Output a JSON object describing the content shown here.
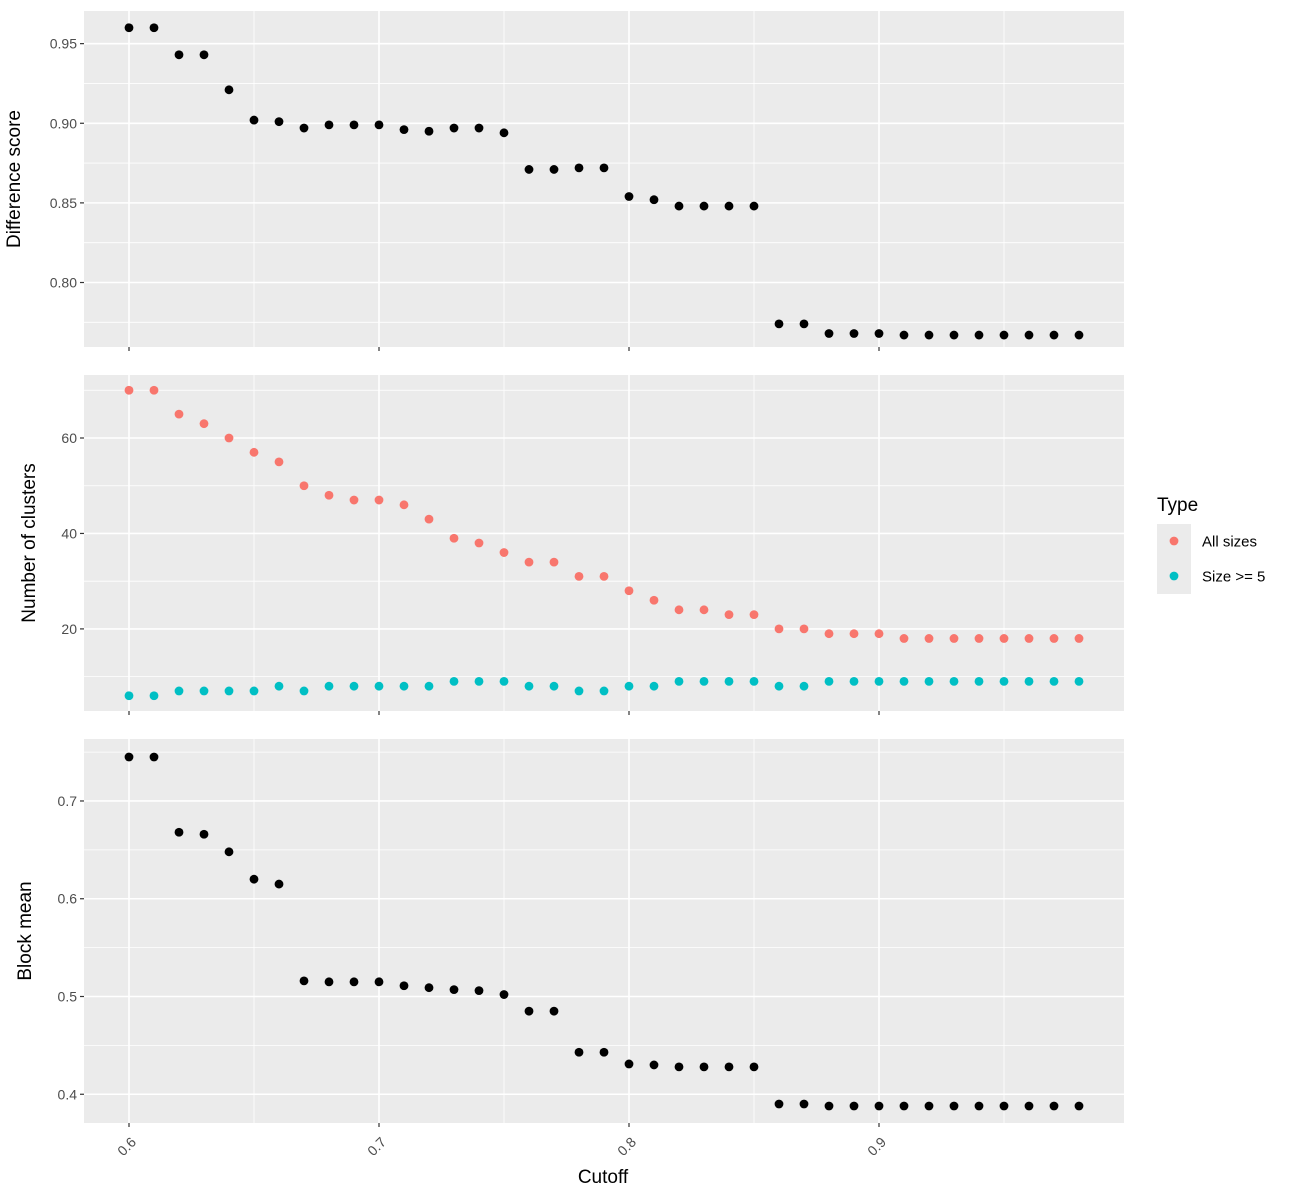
{
  "chart_data": {
    "type": "scatter",
    "xlabel": "Cutoff",
    "xlim": [
      0.582,
      0.998
    ],
    "xticks": [
      0.6,
      0.7,
      0.8,
      0.9
    ],
    "xtick_labels": [
      "0.6",
      "0.7",
      "0.8",
      "0.9"
    ],
    "x": [
      0.6,
      0.61,
      0.62,
      0.63,
      0.64,
      0.65,
      0.66,
      0.67,
      0.68,
      0.69,
      0.7,
      0.71,
      0.72,
      0.73,
      0.74,
      0.75,
      0.76,
      0.77,
      0.78,
      0.79,
      0.8,
      0.81,
      0.82,
      0.83,
      0.84,
      0.85,
      0.86,
      0.87,
      0.88,
      0.89,
      0.9,
      0.91,
      0.92,
      0.93,
      0.94,
      0.95,
      0.96,
      0.97,
      0.98
    ],
    "panels": [
      {
        "ylabel": "Difference score",
        "ylim": [
          0.7595,
          0.9705
        ],
        "yticks": [
          0.8,
          0.85,
          0.9,
          0.95
        ],
        "ytick_labels": [
          "0.80",
          "0.85",
          "0.90",
          "0.95"
        ],
        "series": [
          {
            "color": "#000000",
            "values": [
              0.96,
              0.96,
              0.943,
              0.943,
              0.921,
              0.902,
              0.901,
              0.897,
              0.899,
              0.899,
              0.899,
              0.896,
              0.895,
              0.897,
              0.897,
              0.894,
              0.871,
              0.871,
              0.872,
              0.872,
              0.854,
              0.852,
              0.848,
              0.848,
              0.848,
              0.848,
              0.774,
              0.774,
              0.768,
              0.768,
              0.768,
              0.767,
              0.767,
              0.767,
              0.767,
              0.767,
              0.767,
              0.767,
              0.767
            ]
          }
        ]
      },
      {
        "ylabel": "Number of clusters",
        "ylim": [
          2.8,
          73.2
        ],
        "yticks": [
          20,
          40,
          60
        ],
        "ytick_labels": [
          "20",
          "40",
          "60"
        ],
        "series": [
          {
            "name": "All sizes",
            "color": "#F8766D",
            "values": [
              70,
              70,
              65,
              63,
              60,
              57,
              55,
              50,
              48,
              47,
              47,
              46,
              43,
              39,
              38,
              36,
              34,
              34,
              31,
              31,
              28,
              26,
              24,
              24,
              23,
              23,
              20,
              20,
              19,
              19,
              19,
              18,
              18,
              18,
              18,
              18,
              18,
              18,
              18
            ]
          },
          {
            "name": "Size >= 5",
            "color": "#00BFC4",
            "values": [
              6,
              6,
              7,
              7,
              7,
              7,
              8,
              7,
              8,
              8,
              8,
              8,
              8,
              9,
              9,
              9,
              8,
              8,
              7,
              7,
              8,
              8,
              9,
              9,
              9,
              9,
              8,
              8,
              9,
              9,
              9,
              9,
              9,
              9,
              9,
              9,
              9,
              9,
              9
            ]
          }
        ]
      },
      {
        "ylabel": "Block mean",
        "ylim": [
          0.3706,
          0.7634
        ],
        "yticks": [
          0.4,
          0.5,
          0.6,
          0.7
        ],
        "ytick_labels": [
          "0.4",
          "0.5",
          "0.6",
          "0.7"
        ],
        "series": [
          {
            "color": "#000000",
            "values": [
              0.745,
              0.745,
              0.668,
              0.666,
              0.648,
              0.62,
              0.615,
              0.516,
              0.515,
              0.515,
              0.515,
              0.511,
              0.509,
              0.507,
              0.506,
              0.502,
              0.485,
              0.485,
              0.443,
              0.443,
              0.431,
              0.43,
              0.428,
              0.428,
              0.428,
              0.428,
              0.39,
              0.39,
              0.388,
              0.388,
              0.388,
              0.388,
              0.388,
              0.388,
              0.388,
              0.388,
              0.388,
              0.388,
              0.388
            ]
          }
        ]
      }
    ],
    "legend": {
      "title": "Type",
      "position": "right",
      "entries": [
        {
          "label": "All sizes",
          "color": "#F8766D"
        },
        {
          "label": "Size >= 5",
          "color": "#00BFC4"
        }
      ]
    },
    "grid": true,
    "panel_background": "#EBEBEB",
    "grid_color": "#FFFFFF"
  }
}
